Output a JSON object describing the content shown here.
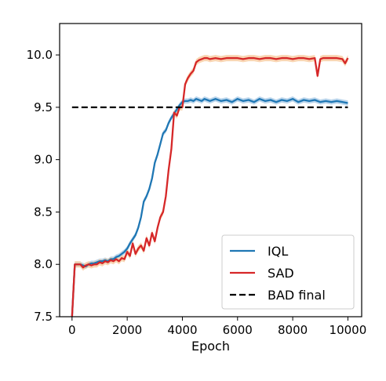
{
  "chart_data": {
    "type": "line",
    "title": "",
    "xlabel": "Epoch",
    "ylabel": "",
    "xlim": [
      -450,
      10500
    ],
    "ylim": [
      7.5,
      10.3
    ],
    "grid": false,
    "legend_placement": "lower-right",
    "x_ticks": [
      {
        "value": 0,
        "label": "0"
      },
      {
        "value": 2000,
        "label": "2000"
      },
      {
        "value": 4000,
        "label": "4000"
      },
      {
        "value": 6000,
        "label": "6000"
      },
      {
        "value": 8000,
        "label": "8000"
      },
      {
        "value": 10000,
        "label": "10000"
      }
    ],
    "y_ticks": [
      {
        "value": 7.5,
        "label": "7.5"
      },
      {
        "value": 8.0,
        "label": "8.0"
      },
      {
        "value": 8.5,
        "label": "8.5"
      },
      {
        "value": 9.0,
        "label": "9.0"
      },
      {
        "value": 9.5,
        "label": "9.5"
      },
      {
        "value": 10.0,
        "label": "10.0"
      }
    ],
    "series": [
      {
        "name": "IQL",
        "color": "#1f77b4",
        "band_color": "#a6c8e6",
        "style": "solid",
        "x": [
          0,
          100,
          200,
          300,
          400,
          500,
          600,
          700,
          800,
          900,
          1000,
          1100,
          1200,
          1300,
          1400,
          1500,
          1600,
          1700,
          1800,
          1900,
          2000,
          2100,
          2200,
          2300,
          2400,
          2500,
          2600,
          2700,
          2800,
          2900,
          3000,
          3100,
          3200,
          3300,
          3400,
          3500,
          3600,
          3700,
          3800,
          3900,
          4000,
          4100,
          4200,
          4300,
          4400,
          4500,
          4600,
          4700,
          4800,
          4900,
          5000,
          5200,
          5400,
          5600,
          5800,
          6000,
          6200,
          6400,
          6600,
          6800,
          7000,
          7200,
          7400,
          7600,
          7800,
          8000,
          8200,
          8400,
          8600,
          8800,
          9000,
          9200,
          9400,
          9600,
          9800,
          10000
        ],
        "values": [
          7.5,
          8.0,
          8.0,
          8.0,
          7.99,
          7.98,
          8.0,
          8.01,
          8.01,
          8.02,
          8.03,
          8.03,
          8.04,
          8.03,
          8.05,
          8.05,
          8.07,
          8.08,
          8.1,
          8.12,
          8.15,
          8.2,
          8.24,
          8.28,
          8.35,
          8.45,
          8.6,
          8.65,
          8.72,
          8.82,
          8.97,
          9.05,
          9.15,
          9.25,
          9.28,
          9.35,
          9.4,
          9.44,
          9.48,
          9.52,
          9.55,
          9.56,
          9.56,
          9.57,
          9.56,
          9.58,
          9.57,
          9.56,
          9.58,
          9.57,
          9.56,
          9.58,
          9.56,
          9.57,
          9.55,
          9.58,
          9.56,
          9.57,
          9.55,
          9.58,
          9.56,
          9.57,
          9.55,
          9.57,
          9.56,
          9.58,
          9.55,
          9.57,
          9.56,
          9.57,
          9.55,
          9.56,
          9.55,
          9.56,
          9.55,
          9.54
        ],
        "band": 0.025
      },
      {
        "name": "SAD",
        "color": "#d62728",
        "band_color": "#f7c79a",
        "style": "solid",
        "x": [
          0,
          100,
          200,
          300,
          400,
          500,
          600,
          700,
          800,
          900,
          1000,
          1100,
          1200,
          1300,
          1400,
          1500,
          1600,
          1700,
          1800,
          1900,
          2000,
          2100,
          2200,
          2300,
          2400,
          2500,
          2600,
          2700,
          2800,
          2900,
          3000,
          3100,
          3200,
          3300,
          3400,
          3500,
          3600,
          3700,
          3800,
          3900,
          4000,
          4100,
          4200,
          4300,
          4400,
          4500,
          4600,
          4700,
          4800,
          4900,
          5000,
          5200,
          5400,
          5600,
          5800,
          6000,
          6200,
          6400,
          6600,
          6800,
          7000,
          7200,
          7400,
          7600,
          7800,
          8000,
          8200,
          8400,
          8600,
          8800,
          8900,
          9000,
          9100,
          9200,
          9400,
          9600,
          9800,
          9900,
          10000
        ],
        "values": [
          7.5,
          8.0,
          8.0,
          8.0,
          7.97,
          7.99,
          8.0,
          7.99,
          8.0,
          8.0,
          8.02,
          8.01,
          8.03,
          8.02,
          8.04,
          8.03,
          8.05,
          8.03,
          8.06,
          8.05,
          8.12,
          8.08,
          8.2,
          8.1,
          8.15,
          8.18,
          8.13,
          8.25,
          8.18,
          8.3,
          8.22,
          8.35,
          8.45,
          8.5,
          8.65,
          8.9,
          9.1,
          9.45,
          9.42,
          9.5,
          9.5,
          9.72,
          9.78,
          9.82,
          9.85,
          9.93,
          9.95,
          9.96,
          9.97,
          9.97,
          9.96,
          9.97,
          9.96,
          9.97,
          9.97,
          9.97,
          9.96,
          9.97,
          9.97,
          9.96,
          9.97,
          9.97,
          9.96,
          9.97,
          9.97,
          9.96,
          9.97,
          9.97,
          9.96,
          9.97,
          9.8,
          9.96,
          9.97,
          9.97,
          9.97,
          9.97,
          9.96,
          9.92,
          9.97
        ],
        "band": 0.03
      },
      {
        "name": "BAD final",
        "color": "#000000",
        "style": "dashed",
        "x": [
          0,
          10000
        ],
        "values": [
          9.5,
          9.5
        ]
      }
    ]
  }
}
